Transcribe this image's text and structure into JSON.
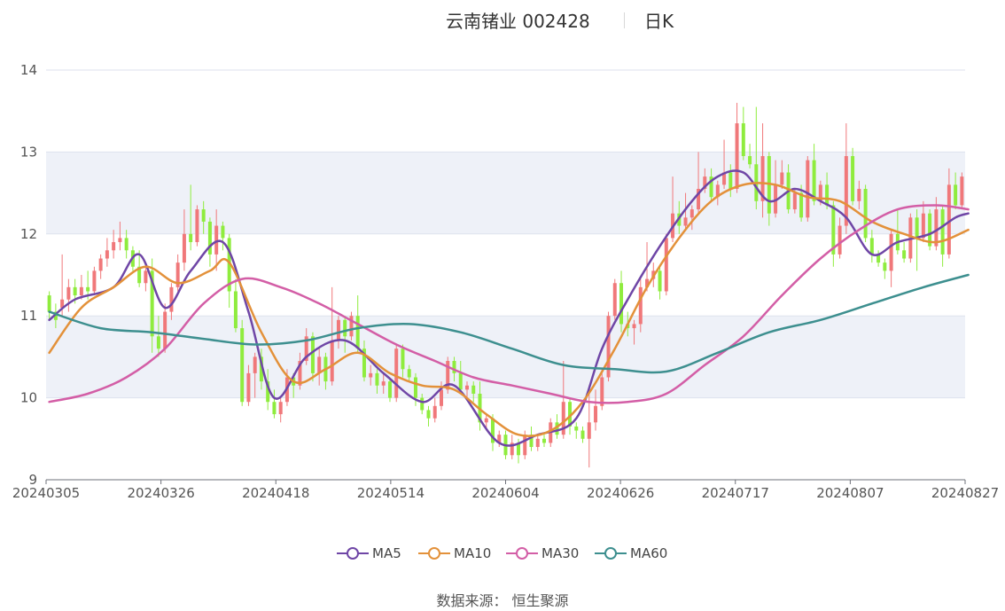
{
  "title": {
    "stock": "云南锗业 002428",
    "period": "日K"
  },
  "source": "数据来源： 恒生聚源",
  "colors": {
    "up": "#f0787a",
    "down": "#8fec3e",
    "MA5": "#6f46a6",
    "MA10": "#e3913a",
    "MA30": "#d35ea6",
    "MA60": "#3d8f8f",
    "band": "#eef1f8",
    "grid": "#dde2ee"
  },
  "chart_data": {
    "type": "candlestick",
    "title": "云南锗业 002428 日K",
    "ylim": [
      9,
      14
    ],
    "yticks": [
      "9",
      "10",
      "11",
      "12",
      "13",
      "14"
    ],
    "xticks": [
      "20240305",
      "20240326",
      "20240418",
      "20240514",
      "20240604",
      "20240626",
      "20240717",
      "20240807",
      "20240827"
    ],
    "candles": [
      [
        11.25,
        11.05,
        11.3,
        10.95
      ],
      [
        11.05,
        10.95,
        11.15,
        10.85
      ],
      [
        11.1,
        11.2,
        11.75,
        11.0
      ],
      [
        11.2,
        11.35,
        11.45,
        11.05
      ],
      [
        11.35,
        11.25,
        11.45,
        11.15
      ],
      [
        11.25,
        11.35,
        11.5,
        11.2
      ],
      [
        11.35,
        11.3,
        11.55,
        11.2
      ],
      [
        11.3,
        11.55,
        11.6,
        11.25
      ],
      [
        11.55,
        11.7,
        11.75,
        11.45
      ],
      [
        11.7,
        11.8,
        11.95,
        11.6
      ],
      [
        11.8,
        11.9,
        12.05,
        11.7
      ],
      [
        11.9,
        11.95,
        12.15,
        11.8
      ],
      [
        11.95,
        11.8,
        12.05,
        11.7
      ],
      [
        11.8,
        11.6,
        11.85,
        11.55
      ],
      [
        11.6,
        11.4,
        11.8,
        11.35
      ],
      [
        11.4,
        11.55,
        11.6,
        11.3
      ],
      [
        11.55,
        10.75,
        11.7,
        10.55
      ],
      [
        10.75,
        10.6,
        11.0,
        10.5
      ],
      [
        10.6,
        11.05,
        11.15,
        10.55
      ],
      [
        11.05,
        11.35,
        11.4,
        10.95
      ],
      [
        11.35,
        11.65,
        11.75,
        11.3
      ],
      [
        11.65,
        12.0,
        12.3,
        11.55
      ],
      [
        12.0,
        11.9,
        12.6,
        11.8
      ],
      [
        11.9,
        12.3,
        12.35,
        11.85
      ],
      [
        12.3,
        12.15,
        12.4,
        12.0
      ],
      [
        12.15,
        11.75,
        12.2,
        11.6
      ],
      [
        11.75,
        12.1,
        12.3,
        11.55
      ],
      [
        12.1,
        11.95,
        12.15,
        11.8
      ],
      [
        11.95,
        11.3,
        12.0,
        11.1
      ],
      [
        11.3,
        10.85,
        11.45,
        10.8
      ],
      [
        10.85,
        9.95,
        10.95,
        9.9
      ],
      [
        9.95,
        10.3,
        10.4,
        9.9
      ],
      [
        10.3,
        10.5,
        10.55,
        10.0
      ],
      [
        10.5,
        10.2,
        10.6,
        10.1
      ],
      [
        10.2,
        9.95,
        10.35,
        9.85
      ],
      [
        9.95,
        9.8,
        10.1,
        9.75
      ],
      [
        9.8,
        9.95,
        10.0,
        9.7
      ],
      [
        9.95,
        10.25,
        10.35,
        9.9
      ],
      [
        10.25,
        10.15,
        10.3,
        10.0
      ],
      [
        10.15,
        10.45,
        10.55,
        10.1
      ],
      [
        10.45,
        10.75,
        10.85,
        10.4
      ],
      [
        10.75,
        10.3,
        10.8,
        10.2
      ],
      [
        10.3,
        10.5,
        10.6,
        10.15
      ],
      [
        10.5,
        10.2,
        10.55,
        10.1
      ],
      [
        10.2,
        10.7,
        11.35,
        10.15
      ],
      [
        10.7,
        10.95,
        11.0,
        10.6
      ],
      [
        10.95,
        10.75,
        11.0,
        10.55
      ],
      [
        10.75,
        11.0,
        11.05,
        10.7
      ],
      [
        11.0,
        10.6,
        11.25,
        10.55
      ],
      [
        10.6,
        10.25,
        10.7,
        10.2
      ],
      [
        10.25,
        10.3,
        10.4,
        10.15
      ],
      [
        10.3,
        10.15,
        10.35,
        10.05
      ],
      [
        10.15,
        10.2,
        10.3,
        10.05
      ],
      [
        10.2,
        10.0,
        10.25,
        9.95
      ],
      [
        10.0,
        10.6,
        10.65,
        9.95
      ],
      [
        10.6,
        10.35,
        10.65,
        10.25
      ],
      [
        10.35,
        10.25,
        10.4,
        10.2
      ],
      [
        10.25,
        10.0,
        10.3,
        9.9
      ],
      [
        10.0,
        9.85,
        10.05,
        9.8
      ],
      [
        9.85,
        9.75,
        9.9,
        9.65
      ],
      [
        9.75,
        9.9,
        10.0,
        9.7
      ],
      [
        9.9,
        10.1,
        10.2,
        9.85
      ],
      [
        10.1,
        10.45,
        10.5,
        10.05
      ],
      [
        10.45,
        10.3,
        10.5,
        10.2
      ],
      [
        10.3,
        10.1,
        10.45,
        10.05
      ],
      [
        10.1,
        10.15,
        10.2,
        10.0
      ],
      [
        10.15,
        10.05,
        10.2,
        9.95
      ],
      [
        10.05,
        9.7,
        10.2,
        9.6
      ],
      [
        9.7,
        9.75,
        9.8,
        9.6
      ],
      [
        9.75,
        9.45,
        9.8,
        9.35
      ],
      [
        9.45,
        9.55,
        9.6,
        9.4
      ],
      [
        9.55,
        9.3,
        9.6,
        9.25
      ],
      [
        9.3,
        9.45,
        9.55,
        9.25
      ],
      [
        9.45,
        9.3,
        9.5,
        9.2
      ],
      [
        9.3,
        9.55,
        9.6,
        9.25
      ],
      [
        9.55,
        9.4,
        9.65,
        9.35
      ],
      [
        9.4,
        9.5,
        9.55,
        9.35
      ],
      [
        9.5,
        9.45,
        9.55,
        9.4
      ],
      [
        9.45,
        9.7,
        9.75,
        9.4
      ],
      [
        9.7,
        9.55,
        9.8,
        9.5
      ],
      [
        9.55,
        9.95,
        10.45,
        9.5
      ],
      [
        9.95,
        9.65,
        10.0,
        9.55
      ],
      [
        9.65,
        9.6,
        9.7,
        9.5
      ],
      [
        9.6,
        9.5,
        9.65,
        9.45
      ],
      [
        9.5,
        9.7,
        10.15,
        9.15
      ],
      [
        9.7,
        9.9,
        10.1,
        9.6
      ],
      [
        9.9,
        10.25,
        10.35,
        9.85
      ],
      [
        10.25,
        11.0,
        11.05,
        10.2
      ],
      [
        11.0,
        11.4,
        11.45,
        10.95
      ],
      [
        11.4,
        10.9,
        11.55,
        10.8
      ],
      [
        10.9,
        10.85,
        11.05,
        10.75
      ],
      [
        10.85,
        10.9,
        10.95,
        10.65
      ],
      [
        10.9,
        11.35,
        11.45,
        10.8
      ],
      [
        11.35,
        11.45,
        11.9,
        11.3
      ],
      [
        11.45,
        11.55,
        11.65,
        11.35
      ],
      [
        11.55,
        11.3,
        11.6,
        11.2
      ],
      [
        11.3,
        11.95,
        12.0,
        11.25
      ],
      [
        11.95,
        12.25,
        12.7,
        11.9
      ],
      [
        12.25,
        12.1,
        12.4,
        12.0
      ],
      [
        12.1,
        12.2,
        12.5,
        12.05
      ],
      [
        12.2,
        12.3,
        12.35,
        12.05
      ],
      [
        12.3,
        12.55,
        13.0,
        12.25
      ],
      [
        12.55,
        12.7,
        12.8,
        12.5
      ],
      [
        12.7,
        12.45,
        12.8,
        12.4
      ],
      [
        12.45,
        12.6,
        12.65,
        12.35
      ],
      [
        12.6,
        12.75,
        13.15,
        12.55
      ],
      [
        12.75,
        12.55,
        12.85,
        12.45
      ],
      [
        12.55,
        13.35,
        13.6,
        12.5
      ],
      [
        13.35,
        12.95,
        13.55,
        12.9
      ],
      [
        12.95,
        12.85,
        13.1,
        12.8
      ],
      [
        12.85,
        12.4,
        13.55,
        12.3
      ],
      [
        12.4,
        12.95,
        13.35,
        12.2
      ],
      [
        12.95,
        12.25,
        13.0,
        12.1
      ],
      [
        12.25,
        12.6,
        12.9,
        12.2
      ],
      [
        12.6,
        12.75,
        12.9,
        12.55
      ],
      [
        12.75,
        12.3,
        12.85,
        12.25
      ],
      [
        12.3,
        12.5,
        12.55,
        12.25
      ],
      [
        12.5,
        12.2,
        12.6,
        12.15
      ],
      [
        12.2,
        12.9,
        12.95,
        12.15
      ],
      [
        12.9,
        12.4,
        13.1,
        12.35
      ],
      [
        12.4,
        12.6,
        12.65,
        12.35
      ],
      [
        12.6,
        12.35,
        12.75,
        12.3
      ],
      [
        12.35,
        11.75,
        12.4,
        11.6
      ],
      [
        11.75,
        12.1,
        12.2,
        11.7
      ],
      [
        12.1,
        12.95,
        13.35,
        12.0
      ],
      [
        12.95,
        12.4,
        13.05,
        12.35
      ],
      [
        12.4,
        12.55,
        12.65,
        12.3
      ],
      [
        12.55,
        11.95,
        12.6,
        11.9
      ],
      [
        11.95,
        11.75,
        12.05,
        11.65
      ],
      [
        11.75,
        11.65,
        11.8,
        11.6
      ],
      [
        11.65,
        11.55,
        11.7,
        11.45
      ],
      [
        11.55,
        12.0,
        12.05,
        11.35
      ],
      [
        12.0,
        11.8,
        12.3,
        11.75
      ],
      [
        11.8,
        11.7,
        11.9,
        11.65
      ],
      [
        11.7,
        12.2,
        12.25,
        11.65
      ],
      [
        12.2,
        11.95,
        12.3,
        11.55
      ],
      [
        11.95,
        12.25,
        12.4,
        11.9
      ],
      [
        12.25,
        11.85,
        12.3,
        11.8
      ],
      [
        11.85,
        12.3,
        12.45,
        11.8
      ],
      [
        12.3,
        11.75,
        12.35,
        11.6
      ],
      [
        11.75,
        12.6,
        12.8,
        11.7
      ],
      [
        12.6,
        12.35,
        12.75,
        12.3
      ],
      [
        12.35,
        12.7,
        12.75,
        12.3
      ]
    ],
    "series": [
      {
        "name": "MA5",
        "x": [
          0,
          4,
          10,
          14,
          18,
          22,
          27,
          31,
          35,
          40,
          46,
          52,
          58,
          63,
          70,
          76,
          82,
          86,
          90,
          95,
          100,
          104,
          108,
          112,
          116,
          120,
          124,
          128,
          132,
          137,
          141,
          143
        ],
        "values": [
          10.95,
          11.2,
          11.35,
          11.75,
          11.1,
          11.55,
          11.9,
          11.05,
          10.0,
          10.5,
          10.7,
          10.3,
          9.95,
          10.15,
          9.45,
          9.55,
          9.75,
          10.6,
          11.2,
          11.85,
          12.4,
          12.7,
          12.75,
          12.4,
          12.55,
          12.4,
          12.2,
          11.75,
          11.9,
          12.0,
          12.2,
          12.25
        ]
      },
      {
        "name": "MA10",
        "x": [
          0,
          5,
          10,
          15,
          20,
          25,
          28,
          33,
          38,
          43,
          48,
          53,
          58,
          63,
          68,
          73,
          78,
          83,
          88,
          93,
          98,
          103,
          108,
          113,
          118,
          123,
          128,
          133,
          138,
          143
        ],
        "values": [
          10.55,
          11.1,
          11.35,
          11.6,
          11.4,
          11.55,
          11.65,
          10.8,
          10.2,
          10.35,
          10.55,
          10.3,
          10.15,
          10.1,
          9.8,
          9.55,
          9.6,
          9.95,
          10.6,
          11.35,
          11.95,
          12.4,
          12.6,
          12.6,
          12.45,
          12.4,
          12.15,
          12.0,
          11.9,
          12.05
        ]
      },
      {
        "name": "MA30",
        "x": [
          0,
          6,
          12,
          18,
          24,
          30,
          36,
          42,
          48,
          54,
          60,
          66,
          72,
          78,
          84,
          90,
          96,
          102,
          108,
          114,
          120,
          126,
          132,
          138,
          143
        ],
        "values": [
          9.95,
          10.05,
          10.25,
          10.6,
          11.15,
          11.45,
          11.35,
          11.15,
          10.9,
          10.65,
          10.45,
          10.25,
          10.15,
          10.05,
          9.95,
          9.95,
          10.05,
          10.4,
          10.75,
          11.25,
          11.7,
          12.05,
          12.3,
          12.35,
          12.3
        ]
      },
      {
        "name": "MA60",
        "x": [
          0,
          8,
          16,
          24,
          32,
          40,
          48,
          56,
          64,
          72,
          80,
          88,
          96,
          104,
          112,
          120,
          128,
          136,
          143
        ],
        "values": [
          11.05,
          10.85,
          10.8,
          10.72,
          10.65,
          10.7,
          10.85,
          10.9,
          10.8,
          10.6,
          10.4,
          10.35,
          10.32,
          10.55,
          10.8,
          10.95,
          11.15,
          11.35,
          11.5
        ]
      }
    ],
    "legend": [
      "MA5",
      "MA10",
      "MA30",
      "MA60"
    ],
    "legend_position": "bottom",
    "grid": true
  }
}
